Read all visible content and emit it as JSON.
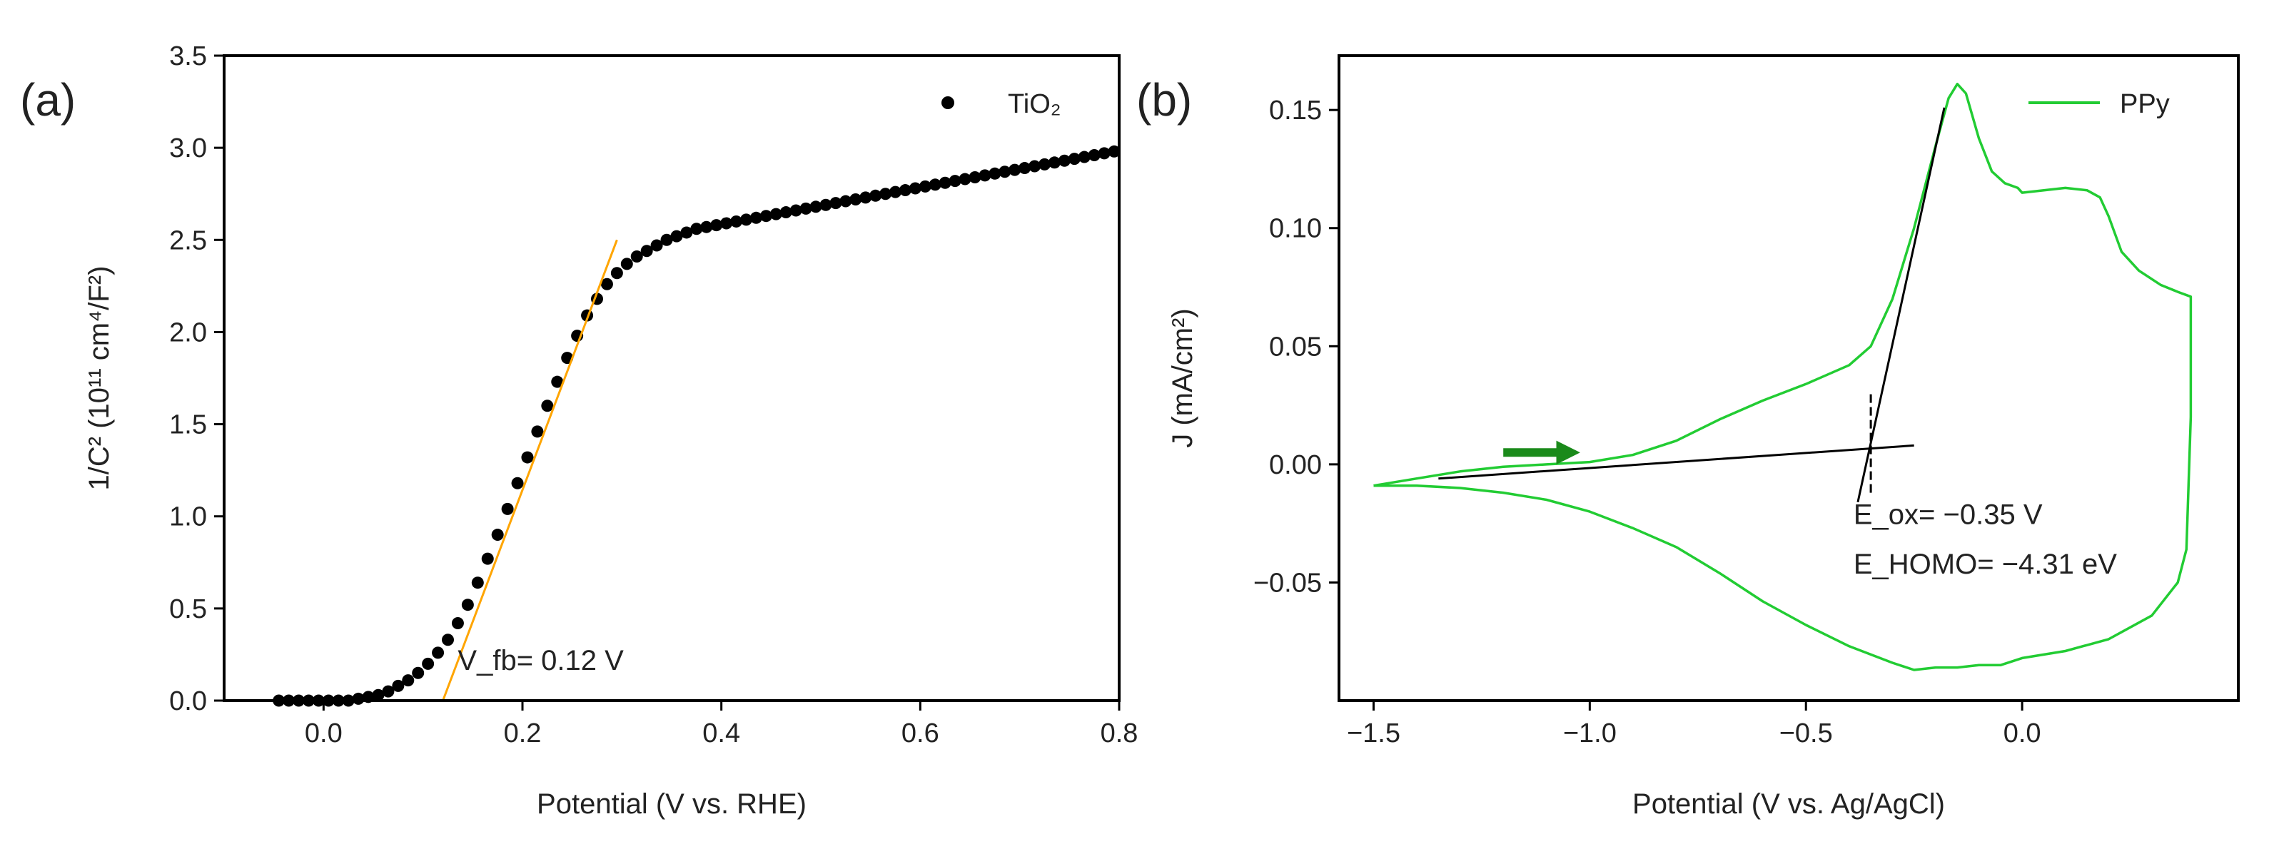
{
  "figure": {
    "panel_labels": [
      "(a)",
      "(b)"
    ]
  },
  "chart_data": [
    {
      "type": "scatter",
      "panel": "(a)",
      "title": "",
      "xlabel": "Potential (V vs. RHE)",
      "ylabel": "1/C² (10¹¹ cm⁴/F²)",
      "xlim": [
        -0.1,
        0.8
      ],
      "ylim": [
        0.0,
        3.5
      ],
      "xticks": [
        0.0,
        0.2,
        0.4,
        0.6,
        0.8
      ],
      "xtick_labels": [
        "0.0",
        "0.2",
        "0.4",
        "0.6",
        "0.8"
      ],
      "yticks": [
        0.0,
        0.5,
        1.0,
        1.5,
        2.0,
        2.5,
        3.0,
        3.5
      ],
      "ytick_labels": [
        "0.0",
        "0.5",
        "1.0",
        "1.5",
        "2.0",
        "2.5",
        "3.0",
        "3.5"
      ],
      "grid": false,
      "legend": {
        "position": "top-right",
        "entries": [
          "TiO₂"
        ]
      },
      "series": [
        {
          "name": "TiO₂",
          "color": "#000000",
          "x": [
            -0.045,
            -0.035,
            -0.025,
            -0.015,
            -0.005,
            0.005,
            0.015,
            0.025,
            0.035,
            0.045,
            0.055,
            0.065,
            0.075,
            0.085,
            0.095,
            0.105,
            0.115,
            0.125,
            0.135,
            0.145,
            0.155,
            0.165,
            0.175,
            0.185,
            0.195,
            0.205,
            0.215,
            0.225,
            0.235,
            0.245,
            0.255,
            0.265,
            0.275,
            0.285,
            0.295,
            0.305,
            0.315,
            0.325,
            0.335,
            0.345,
            0.355,
            0.365,
            0.375,
            0.385,
            0.395,
            0.405,
            0.415,
            0.425,
            0.435,
            0.445,
            0.455,
            0.465,
            0.475,
            0.485,
            0.495,
            0.505,
            0.515,
            0.525,
            0.535,
            0.545,
            0.555,
            0.565,
            0.575,
            0.585,
            0.595,
            0.605,
            0.615,
            0.625,
            0.635,
            0.645,
            0.655,
            0.665,
            0.675,
            0.685,
            0.695,
            0.705,
            0.715,
            0.725,
            0.735,
            0.745,
            0.755,
            0.765,
            0.775,
            0.785,
            0.795
          ],
          "y": [
            0.0,
            0.0,
            0.0,
            0.0,
            0.0,
            0.0,
            0.0,
            0.0,
            0.01,
            0.02,
            0.03,
            0.05,
            0.08,
            0.11,
            0.15,
            0.2,
            0.26,
            0.33,
            0.42,
            0.52,
            0.64,
            0.77,
            0.9,
            1.04,
            1.18,
            1.32,
            1.46,
            1.6,
            1.73,
            1.86,
            1.98,
            2.09,
            2.18,
            2.26,
            2.32,
            2.37,
            2.41,
            2.44,
            2.47,
            2.5,
            2.52,
            2.54,
            2.56,
            2.57,
            2.58,
            2.59,
            2.6,
            2.61,
            2.62,
            2.63,
            2.64,
            2.65,
            2.66,
            2.67,
            2.68,
            2.69,
            2.7,
            2.71,
            2.72,
            2.73,
            2.74,
            2.75,
            2.76,
            2.77,
            2.78,
            2.79,
            2.8,
            2.81,
            2.82,
            2.83,
            2.84,
            2.85,
            2.86,
            2.87,
            2.88,
            2.89,
            2.9,
            2.91,
            2.92,
            2.93,
            2.94,
            2.95,
            2.96,
            2.97,
            2.98
          ]
        }
      ],
      "fit_line": {
        "color": "#ffa500",
        "x": [
          0.12,
          0.295
        ],
        "y": [
          0.0,
          2.5
        ]
      },
      "annotations": [
        {
          "text": "V_fb= 0.12 V",
          "x": 0.135,
          "y": 0.22
        }
      ]
    },
    {
      "type": "line",
      "panel": "(b)",
      "title": "",
      "xlabel": "Potential (V vs. Ag/AgCl)",
      "ylabel": "J (mA/cm²)",
      "xlim": [
        -1.58,
        0.5
      ],
      "ylim": [
        -0.1,
        0.173
      ],
      "xticks": [
        -1.5,
        -1.0,
        -0.5,
        0.0
      ],
      "xtick_labels": [
        "−1.5",
        "−1.0",
        "−0.5",
        "0.0"
      ],
      "yticks": [
        -0.05,
        0.0,
        0.05,
        0.1,
        0.15
      ],
      "ytick_labels": [
        "−0.05",
        "0.00",
        "0.05",
        "0.10",
        "0.15"
      ],
      "grid": false,
      "legend": {
        "position": "top-right",
        "entries": [
          "PPy"
        ]
      },
      "series": [
        {
          "name": "PPy",
          "color": "#22cc33",
          "x": [
            -1.5,
            -1.4,
            -1.3,
            -1.2,
            -1.1,
            -1.0,
            -0.9,
            -0.8,
            -0.7,
            -0.6,
            -0.5,
            -0.4,
            -0.35,
            -0.3,
            -0.25,
            -0.2,
            -0.17,
            -0.15,
            -0.13,
            -0.1,
            -0.07,
            -0.04,
            -0.01,
            0.0,
            0.05,
            0.1,
            0.15,
            0.18,
            0.2,
            0.23,
            0.27,
            0.32,
            0.36,
            0.39,
            0.39,
            0.38,
            0.36,
            0.3,
            0.2,
            0.1,
            0.0,
            -0.05,
            -0.1,
            -0.15,
            -0.2,
            -0.25,
            -0.3,
            -0.4,
            -0.5,
            -0.6,
            -0.7,
            -0.8,
            -0.9,
            -1.0,
            -1.1,
            -1.2,
            -1.3,
            -1.4,
            -1.5
          ],
          "y": [
            -0.009,
            -0.006,
            -0.003,
            -0.001,
            0.0,
            0.001,
            0.004,
            0.01,
            0.019,
            0.027,
            0.034,
            0.042,
            0.05,
            0.07,
            0.1,
            0.135,
            0.155,
            0.161,
            0.157,
            0.138,
            0.124,
            0.119,
            0.117,
            0.115,
            0.116,
            0.117,
            0.116,
            0.113,
            0.105,
            0.09,
            0.082,
            0.076,
            0.073,
            0.071,
            0.02,
            -0.036,
            -0.05,
            -0.064,
            -0.074,
            -0.079,
            -0.082,
            -0.085,
            -0.085,
            -0.086,
            -0.086,
            -0.087,
            -0.084,
            -0.077,
            -0.068,
            -0.058,
            -0.046,
            -0.035,
            -0.027,
            -0.02,
            -0.015,
            -0.012,
            -0.01,
            -0.009,
            -0.009
          ]
        }
      ],
      "baseline_fit": {
        "color": "#000000",
        "x": [
          -1.35,
          -0.25
        ],
        "y": [
          -0.006,
          0.008
        ]
      },
      "onset_fit": {
        "color": "#000000",
        "x": [
          -0.38,
          -0.18
        ],
        "y": [
          -0.016,
          0.151
        ]
      },
      "intersection_marker": {
        "x": -0.35,
        "y_range": [
          -0.012,
          0.031
        ]
      },
      "scan_direction": {
        "color": "#1a8a1a",
        "x_from": -1.2,
        "x_to": -1.05,
        "y": 0.005
      },
      "annotations": [
        {
          "text": "E_ox= −0.35 V",
          "x": -0.39,
          "y": -0.021
        },
        {
          "text": "E_HOMO= −4.31 eV",
          "x": -0.39,
          "y": -0.042
        }
      ]
    }
  ]
}
